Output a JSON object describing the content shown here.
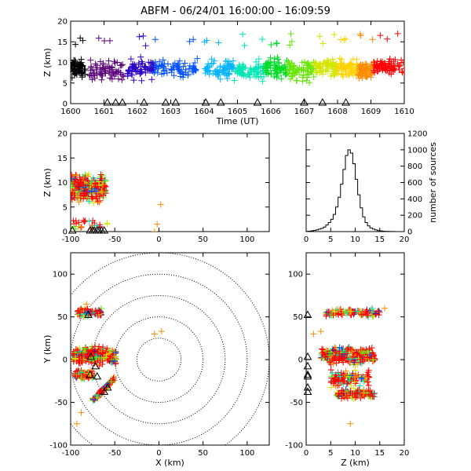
{
  "title": "ABFM - 06/24/01 16:00:00 - 16:09:59",
  "colors": {
    "background": "#ffffff",
    "axis": "#000000",
    "time_ramp": [
      "#000000",
      "#5a007a",
      "#2a00c8",
      "#0050ff",
      "#00b4ff",
      "#00e6b4",
      "#00dc28",
      "#64e600",
      "#d2e600",
      "#ffd200",
      "#ff8c00",
      "#ff0000"
    ]
  },
  "chart_data": [
    {
      "id": "z-vs-time",
      "type": "scatter",
      "marker": "plus",
      "xlabel": "Time (UT)",
      "ylabel": "Z (km)",
      "xlim": [
        1600,
        1610
      ],
      "ylim": [
        0,
        20
      ],
      "xticks": [
        "1600",
        "1601",
        "1602",
        "1603",
        "1604",
        "1605",
        "1606",
        "1607",
        "1608",
        "1609",
        "1610"
      ],
      "yticks": [
        "0",
        "5",
        "10",
        "15",
        "20"
      ],
      "clusters": [
        {
          "t": [
            1600.0,
            1600.45
          ],
          "z_center": 8.5,
          "z_spread": 3.0,
          "color_index": 0
        },
        {
          "t": [
            1600.55,
            1601.6
          ],
          "z_center": 8.0,
          "z_spread": 3.5,
          "color_index": 1
        },
        {
          "t": [
            1601.7,
            1602.5
          ],
          "z_center": 8.5,
          "z_spread": 3.5,
          "color_index": 2
        },
        {
          "t": [
            1602.5,
            1603.8
          ],
          "z_center": 8.5,
          "z_spread": 3.0,
          "color_index": 3
        },
        {
          "t": [
            1604.0,
            1604.9
          ],
          "z_center": 8.5,
          "z_spread": 3.0,
          "color_index": 4
        },
        {
          "t": [
            1604.9,
            1605.8
          ],
          "z_center": 8.0,
          "z_spread": 3.5,
          "color_index": 5
        },
        {
          "t": [
            1605.8,
            1606.5
          ],
          "z_center": 8.5,
          "z_spread": 3.5,
          "color_index": 6
        },
        {
          "t": [
            1606.5,
            1607.3
          ],
          "z_center": 8.0,
          "z_spread": 3.5,
          "color_index": 7
        },
        {
          "t": [
            1607.3,
            1608.0
          ],
          "z_center": 8.5,
          "z_spread": 3.0,
          "color_index": 8
        },
        {
          "t": [
            1608.0,
            1608.6
          ],
          "z_center": 8.5,
          "z_spread": 3.0,
          "color_index": 9
        },
        {
          "t": [
            1608.6,
            1609.1
          ],
          "z_center": 8.0,
          "z_spread": 3.0,
          "color_index": 10
        },
        {
          "t": [
            1609.0,
            1610.0
          ],
          "z_center": 9.0,
          "z_spread": 2.5,
          "color_index": 11
        }
      ],
      "ground_strikes_t": [
        1601.1,
        1601.35,
        1601.55,
        1602.2,
        1602.85,
        1603.15,
        1604.05,
        1604.5,
        1605.6,
        1607.0,
        1607.55,
        1608.25
      ]
    },
    {
      "id": "z-vs-x",
      "type": "scatter",
      "marker": "plus",
      "xlabel": "",
      "ylabel": "Z (km)",
      "xlim": [
        -100,
        125
      ],
      "ylim": [
        0,
        20
      ],
      "xticks": [
        "-100",
        "-50",
        "0",
        "50",
        "100"
      ],
      "yticks": [
        "0",
        "5",
        "10",
        "15",
        "20"
      ],
      "clusters": [
        {
          "x": [
            -100,
            -60
          ],
          "z_center": 9.0,
          "z_spread": 3.5,
          "color_mix": "red-dominant"
        }
      ],
      "outliers": [
        {
          "x": 2,
          "z": 5.5
        },
        {
          "x": -2,
          "z": 1.5
        },
        {
          "x": -5,
          "z": 0.0
        }
      ],
      "ground_strikes_x": [
        -98,
        -78,
        -75,
        -73,
        -70,
        -68,
        -65,
        -62
      ]
    },
    {
      "id": "source-histogram",
      "type": "line",
      "style": "step",
      "xlabel": "",
      "ylabel": "number of sources",
      "xlim": [
        0,
        20
      ],
      "ylim": [
        0,
        1200
      ],
      "xticks": [
        "0",
        "5",
        "10",
        "15",
        "20"
      ],
      "yticks": [
        "0",
        "200",
        "400",
        "600",
        "800",
        "1000",
        "1200"
      ],
      "bin_width_km": 0.5,
      "x": [
        0,
        0.5,
        1,
        1.5,
        2,
        2.5,
        3,
        3.5,
        4,
        4.5,
        5,
        5.5,
        6,
        6.5,
        7,
        7.5,
        8,
        8.5,
        9,
        9.5,
        10,
        10.5,
        11,
        11.5,
        12,
        12.5,
        13,
        13.5,
        14,
        14.5,
        15,
        15.5,
        16,
        16.5,
        17,
        17.5,
        18,
        18.5,
        19,
        19.5
      ],
      "values": [
        2,
        5,
        10,
        15,
        20,
        30,
        40,
        55,
        80,
        110,
        150,
        210,
        300,
        420,
        580,
        760,
        930,
        1000,
        960,
        830,
        640,
        450,
        290,
        180,
        110,
        70,
        45,
        30,
        20,
        12,
        8,
        5,
        3,
        2,
        1,
        1,
        0,
        0,
        0,
        0
      ]
    },
    {
      "id": "y-vs-x",
      "type": "scatter",
      "marker": "plus",
      "xlabel": "X (km)",
      "ylabel": "Y (km)",
      "xlim": [
        -100,
        125
      ],
      "ylim": [
        -100,
        125
      ],
      "xticks": [
        "-100",
        "-50",
        "0",
        "50",
        "100"
      ],
      "yticks": [
        "-100",
        "-50",
        "0",
        "50",
        "100"
      ],
      "range_rings_km": [
        25,
        50,
        75,
        100,
        125
      ],
      "clusters": [
        {
          "x": [
            -92,
            -65
          ],
          "y_center": 55,
          "y_spread": 6
        },
        {
          "x": [
            -98,
            -48
          ],
          "y_center": 5,
          "y_spread": 14
        },
        {
          "x": [
            -95,
            -75
          ],
          "y_center": -18,
          "y_spread": 6
        },
        {
          "x": [
            -75,
            -50
          ],
          "y_center": -35,
          "y_spread": 14
        }
      ],
      "outliers": [
        {
          "x": -5,
          "y": 30
        },
        {
          "x": 3,
          "y": 33
        },
        {
          "x": -82,
          "y": 65
        },
        {
          "x": -88,
          "y": -62
        },
        {
          "x": -93,
          "y": -75
        }
      ],
      "ground_strikes": [
        {
          "x": -80,
          "y": 52
        },
        {
          "x": -77,
          "y": 3
        },
        {
          "x": -72,
          "y": -8
        },
        {
          "x": -78,
          "y": -18
        },
        {
          "x": -70,
          "y": -20
        },
        {
          "x": -58,
          "y": -33
        },
        {
          "x": -62,
          "y": -38
        }
      ]
    },
    {
      "id": "y-vs-z",
      "type": "scatter",
      "marker": "plus",
      "xlabel": "Z (km)",
      "ylabel": "",
      "xlim": [
        0,
        20
      ],
      "ylim": [
        -100,
        125
      ],
      "xticks": [
        "0",
        "5",
        "10",
        "15",
        "20"
      ],
      "yticks": [
        "-100",
        "-50",
        "0",
        "50",
        "100"
      ],
      "clusters": [
        {
          "z": [
            4,
            15
          ],
          "y_center": 55,
          "y_spread": 6
        },
        {
          "z": [
            3,
            14
          ],
          "y_center": 5,
          "y_spread": 14
        },
        {
          "z": [
            5,
            13
          ],
          "y_center": -22,
          "y_spread": 14
        },
        {
          "z": [
            6,
            14
          ],
          "y_center": -40,
          "y_spread": 8
        }
      ],
      "outliers": [
        {
          "z": 1.5,
          "y": 30
        },
        {
          "z": 3,
          "y": 33
        },
        {
          "z": 9,
          "y": -75
        },
        {
          "z": 16,
          "y": 60
        }
      ],
      "ground_strikes_y": [
        52,
        3,
        -8,
        -18,
        -20,
        -33,
        -38
      ]
    }
  ]
}
